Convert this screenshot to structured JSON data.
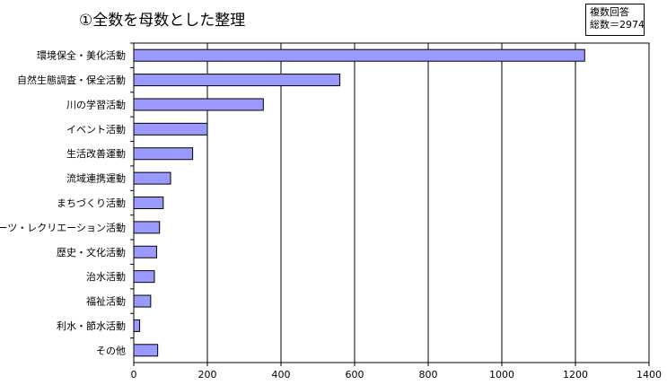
{
  "chart_data": {
    "type": "bar",
    "orientation": "horizontal",
    "title": "①全数を母数とした整理",
    "note": [
      "複数回答",
      "総数＝2974"
    ],
    "categories": [
      "環境保全・美化活動",
      "自然生態調査・保全活動",
      "川の学習活動",
      "イベント活動",
      "生活改善運動",
      "流域連携運動",
      "まちづくり活動",
      "スポーツ・レクリエーション活動",
      "歴史・文化活動",
      "治水活動",
      "福祉活動",
      "利水・節水活動",
      "その他"
    ],
    "values": [
      1225,
      560,
      352,
      200,
      160,
      100,
      80,
      70,
      62,
      56,
      46,
      16,
      65
    ],
    "xlim": [
      0,
      1400
    ],
    "xticks": [
      0,
      200,
      400,
      600,
      800,
      1000,
      1200,
      1400
    ],
    "grid": true,
    "bar_color": "#9999ff",
    "legend": "none"
  }
}
